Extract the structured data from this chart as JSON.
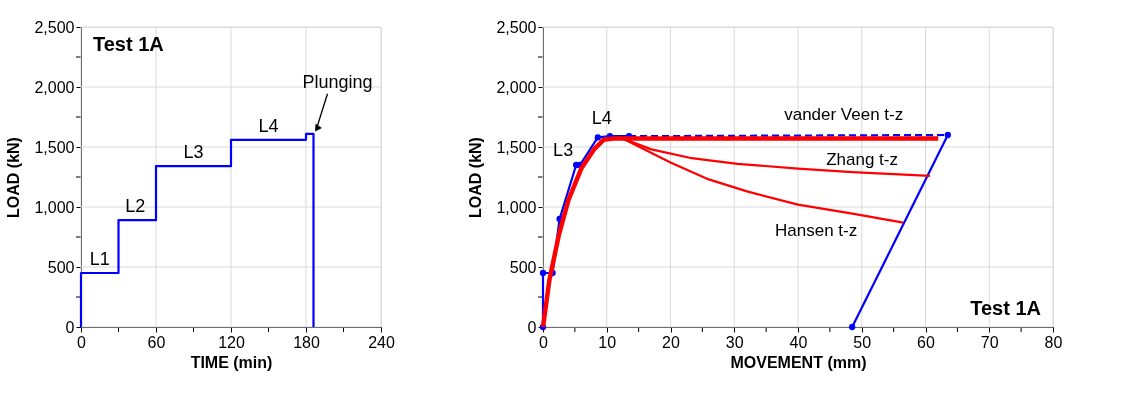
{
  "chart_data": [
    {
      "type": "line",
      "xlabel": "TIME  (min)",
      "ylabel": "LOAD  (kN)",
      "xlim": [
        0,
        240
      ],
      "ylim": [
        0,
        2500
      ],
      "xticks": [
        {
          "value": 0,
          "label": "0"
        },
        {
          "value": 30,
          "label": null
        },
        60,
        {
          "value": 90,
          "label": null
        },
        120,
        {
          "value": 150,
          "label": null
        },
        180,
        {
          "value": 210,
          "label": null
        },
        240
      ],
      "yticks": [
        {
          "value": 0,
          "label": "0"
        },
        {
          "value": 250,
          "label": null
        },
        500,
        {
          "value": 750,
          "label": null
        },
        {
          "value": 1000,
          "label": "1,000"
        },
        {
          "value": 1250,
          "label": null
        },
        {
          "value": 1500,
          "label": "1,500"
        },
        {
          "value": 1750,
          "label": null
        },
        {
          "value": 2000,
          "label": "2,000"
        },
        {
          "value": 2250,
          "label": null
        },
        {
          "value": 2500,
          "label": "2,500"
        }
      ],
      "grid": true,
      "marker": "none",
      "line_style": "solid",
      "series": [
        {
          "color": "#0000ff",
          "x": [
            0,
            0,
            30,
            30,
            60,
            60,
            120,
            120,
            180,
            180,
            186,
            186
          ],
          "values": [
            0,
            450,
            450,
            890,
            890,
            1340,
            1340,
            1560,
            1560,
            1610,
            1610,
            0
          ]
        }
      ],
      "annotations": [
        "Test 1A",
        {
          "text": "L1",
          "x": 15,
          "y": 450
        },
        {
          "text": "L2",
          "x": 45,
          "y": 890
        },
        {
          "text": "L3",
          "x": 90,
          "y": 1340
        },
        {
          "text": "L4",
          "x": 150,
          "y": 1560
        },
        {
          "text": "Plunging",
          "x": 186,
          "y": 1610
        }
      ]
    },
    {
      "type": "line",
      "xlabel": "MOVEMENT  (mm)",
      "ylabel": "LOAD  (kN)",
      "xlim": [
        0,
        80
      ],
      "ylim": [
        0,
        2500
      ],
      "xticks": [
        {
          "value": 0,
          "label": "0"
        },
        {
          "value": 5,
          "label": null
        },
        10,
        {
          "value": 15,
          "label": null
        },
        20,
        {
          "value": 25,
          "label": null
        },
        30,
        {
          "value": 35,
          "label": null
        },
        40,
        {
          "value": 45,
          "label": null
        },
        50,
        {
          "value": 55,
          "label": null
        },
        60,
        {
          "value": 65,
          "label": null
        },
        70,
        {
          "value": 75,
          "label": null
        },
        80
      ],
      "yticks": [
        {
          "value": 0,
          "label": "0"
        },
        {
          "value": 250,
          "label": null
        },
        500,
        {
          "value": 750,
          "label": null
        },
        {
          "value": 1000,
          "label": "1,000"
        },
        {
          "value": 1250,
          "label": null
        },
        {
          "value": 1500,
          "label": "1,500"
        },
        {
          "value": 1750,
          "label": null
        },
        {
          "value": 2000,
          "label": "2,000"
        },
        {
          "value": 2250,
          "label": null
        },
        {
          "value": 2500,
          "label": "2,500"
        }
      ],
      "grid": true,
      "series": [
        {
          "color": "#0000ff",
          "marker": "circle",
          "line_style": "solid",
          "x": [
            0,
            0,
            1.5,
            2.6,
            5.2,
            5.8,
            8.6,
            10.5,
            13.5
          ],
          "values": [
            0,
            450,
            450,
            900,
            1350,
            1350,
            1580,
            1590,
            1590
          ]
        },
        {
          "color": "#0000ff",
          "marker": "none",
          "line_style": "dashed",
          "x": [
            13.5,
            63.5
          ],
          "values": [
            1590,
            1600
          ]
        },
        {
          "color": "#0000ff",
          "marker": "circle",
          "line_style": "solid",
          "x": [
            63.5,
            48.5
          ],
          "values": [
            1600,
            0
          ]
        },
        {
          "name": "vander Veen t-z",
          "color": "#ff0000",
          "marker": "none",
          "line_style": "solid",
          "x": [
            0,
            1,
            2.5,
            4,
            6,
            8,
            9.5,
            11,
            62
          ],
          "values": [
            0,
            390,
            770,
            1060,
            1320,
            1480,
            1560,
            1570,
            1570
          ]
        },
        {
          "name": "Zhang  t-z",
          "color": "#ff0000",
          "marker": "none",
          "line_style": "solid",
          "x": [
            11,
            12.5,
            17,
            23,
            30.5,
            40,
            48.5,
            60.7
          ],
          "values": [
            1570,
            1570,
            1480,
            1410,
            1360,
            1320,
            1290,
            1260
          ]
        },
        {
          "name": "Hansen t-z",
          "color": "#ff0000",
          "marker": "none",
          "line_style": "solid",
          "x": [
            11,
            12.5,
            20,
            26,
            32,
            40,
            49,
            56.5
          ],
          "values": [
            1570,
            1570,
            1370,
            1230,
            1130,
            1020,
            940,
            870
          ]
        }
      ],
      "annotations": [
        "Test 1A",
        {
          "text": "L3",
          "x": 5.2,
          "y": 1350
        },
        {
          "text": "L4",
          "x": 8.6,
          "y": 1580
        }
      ]
    }
  ]
}
